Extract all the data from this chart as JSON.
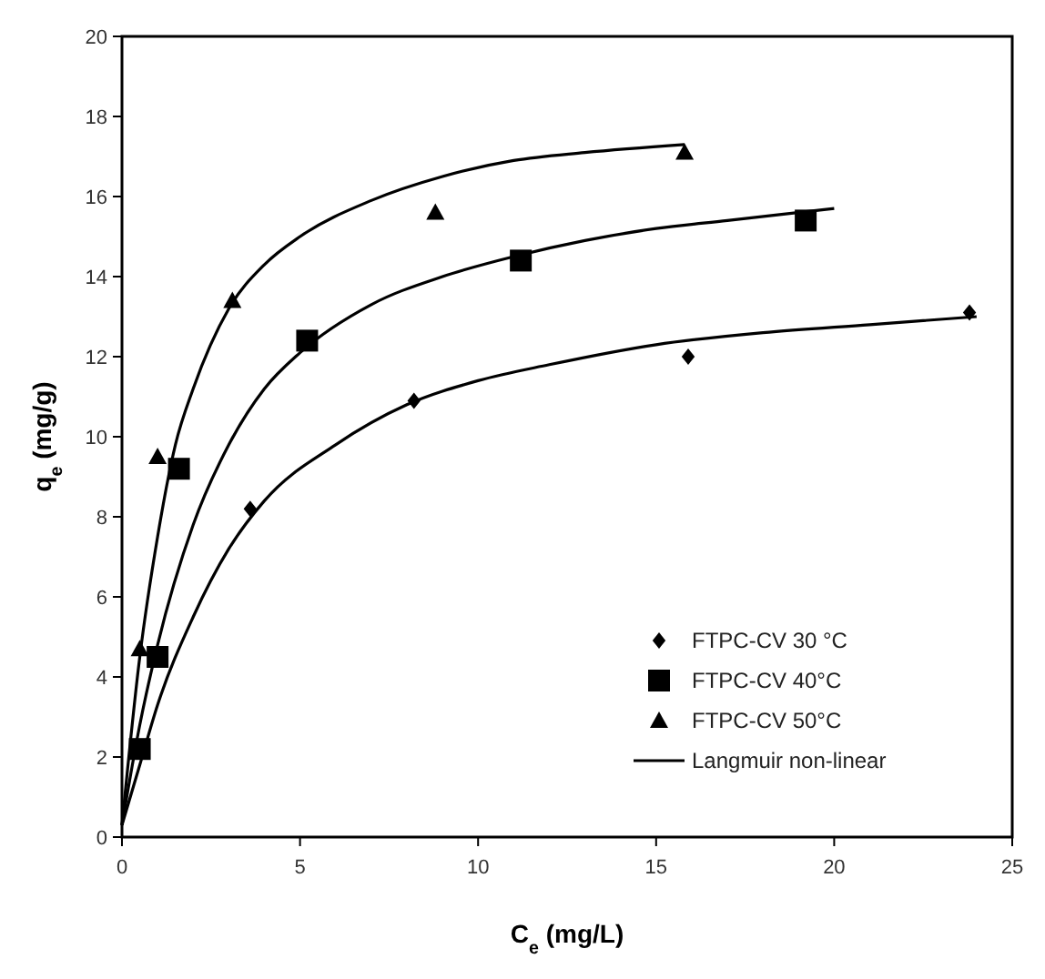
{
  "chart_data": {
    "type": "scatter",
    "xlabel": "C$_{e}$ (mg/L)",
    "ylabel": "q$_{e}$ (mg/g)",
    "xlim": [
      0,
      25
    ],
    "xticks": [
      0,
      5,
      10,
      15,
      20,
      25
    ],
    "ylim": [
      0,
      20
    ],
    "yticks": [
      0,
      2,
      4,
      6,
      8,
      10,
      12,
      14,
      16,
      18,
      20
    ],
    "grid": false,
    "legend": "bottom right",
    "series": [
      {
        "name": "FTPC-CV 30 °C",
        "color": "#000000",
        "marker": "diamond",
        "x": [
          3.6,
          8.2,
          15.9,
          23.8
        ],
        "values": [
          8.2,
          10.9,
          12.0,
          13.1
        ]
      },
      {
        "name": "FTPC-CV 40°C",
        "color": "#000000",
        "marker": "square",
        "x": [
          0.5,
          1.0,
          1.6,
          5.2,
          11.2,
          19.2
        ],
        "values": [
          2.2,
          4.5,
          9.2,
          12.4,
          14.4,
          15.4
        ]
      },
      {
        "name": "FTPC-CV 50°C",
        "color": "#000000",
        "marker": "triangle",
        "x": [
          0.5,
          1.0,
          3.1,
          8.8,
          15.8
        ],
        "values": [
          4.7,
          9.5,
          13.4,
          15.6,
          17.1
        ]
      },
      {
        "name": "Langmuir non-linear",
        "type": "line",
        "color": "#000000",
        "line_style": "solid",
        "marker": "none",
        "x": [
          0,
          0.5,
          1,
          2,
          3,
          4,
          6,
          8,
          10,
          12,
          15,
          18,
          21,
          24
        ],
        "values": [
          0.3,
          1.8,
          3.3,
          5.5,
          7.2,
          8.4,
          9.8,
          10.8,
          11.4,
          11.8,
          12.3,
          12.6,
          12.8,
          13.0
        ]
      },
      {
        "type": "line",
        "color": "#000000",
        "line_style": "solid",
        "marker": "none",
        "x": [
          0,
          0.5,
          1,
          2,
          3,
          4,
          5,
          7,
          9,
          11,
          13,
          15,
          17,
          20
        ],
        "values": [
          0.3,
          2.8,
          4.8,
          7.8,
          9.8,
          11.2,
          12.1,
          13.3,
          14.0,
          14.5,
          14.9,
          15.2,
          15.4,
          15.7
        ]
      },
      {
        "type": "line",
        "color": "#000000",
        "line_style": "solid",
        "marker": "none",
        "x": [
          0,
          0.5,
          1,
          1.5,
          2,
          3,
          4,
          5,
          7,
          9,
          11,
          13,
          15.8
        ],
        "values": [
          0.3,
          4.5,
          7.5,
          9.8,
          11.2,
          13.2,
          14.3,
          15.0,
          15.9,
          16.5,
          16.9,
          17.1,
          17.3
        ]
      }
    ]
  }
}
